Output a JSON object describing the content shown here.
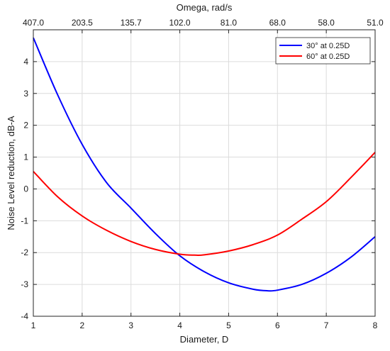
{
  "chart_data": {
    "type": "line",
    "xlabel": "Diameter, D",
    "ylabel": "Noise Level reduction, dB-A",
    "top_xlabel": "Omega, rad/s",
    "xlim": [
      1,
      8
    ],
    "ylim": [
      -4,
      5
    ],
    "x_ticks": [
      1,
      2,
      3,
      4,
      5,
      6,
      7,
      8
    ],
    "y_ticks": [
      -4,
      -3,
      -2,
      -1,
      0,
      1,
      2,
      3,
      4
    ],
    "top_tick_labels": [
      "407.0",
      "203.5",
      "135.7",
      "102.0",
      "81.0",
      "68.0",
      "58.0",
      "51.0"
    ],
    "grid": true,
    "legend_position": "top-right",
    "series": [
      {
        "name": "30° at 0.25D",
        "color": "#0000ff",
        "x": [
          1,
          1.5,
          2,
          2.5,
          3,
          3.5,
          4,
          4.5,
          5,
          5.5,
          5.8,
          6,
          6.5,
          7,
          7.5,
          8
        ],
        "y": [
          4.75,
          2.95,
          1.4,
          0.2,
          -0.6,
          -1.4,
          -2.1,
          -2.6,
          -2.95,
          -3.15,
          -3.2,
          -3.18,
          -3.0,
          -2.65,
          -2.15,
          -1.5
        ]
      },
      {
        "name": "60° at 0.25D",
        "color": "#ff0000",
        "x": [
          1,
          1.5,
          2,
          2.5,
          3,
          3.5,
          4,
          4.3,
          4.5,
          5,
          5.5,
          6,
          6.5,
          7,
          7.5,
          8
        ],
        "y": [
          0.55,
          -0.25,
          -0.85,
          -1.3,
          -1.65,
          -1.9,
          -2.05,
          -2.08,
          -2.07,
          -1.95,
          -1.75,
          -1.45,
          -0.95,
          -0.4,
          0.35,
          1.15
        ]
      }
    ]
  }
}
